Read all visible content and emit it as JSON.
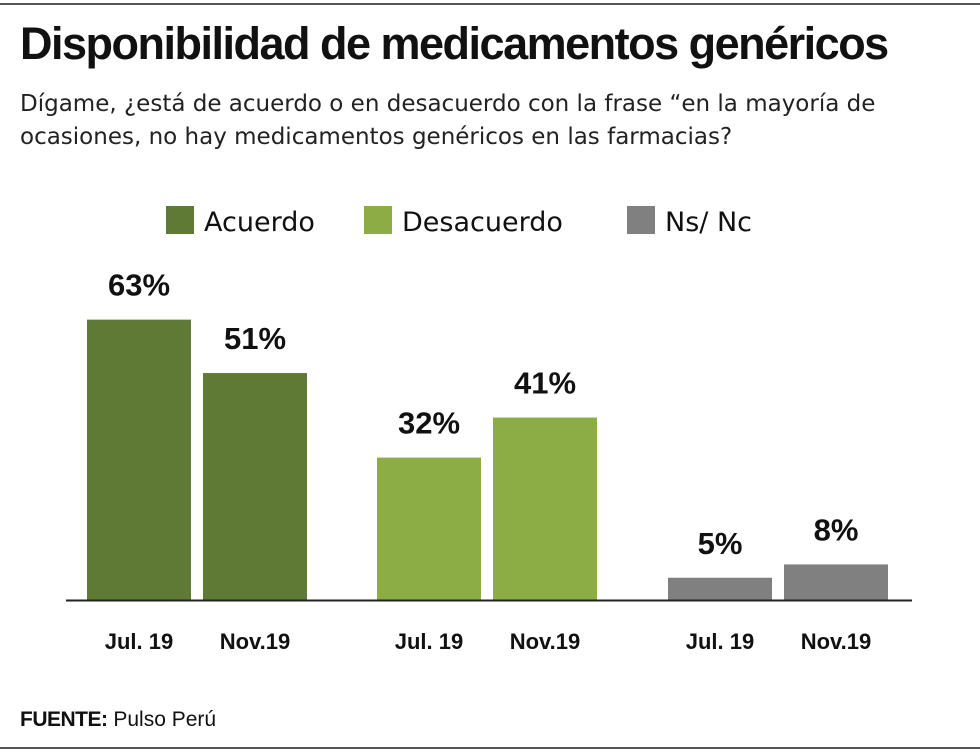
{
  "header": {
    "title": "Disponibilidad de medicamentos genéricos",
    "subtitle": "Dígame, ¿está de acuerdo o en desacuerdo con la frase “en la mayoría de ocasiones, no hay medicamentos genéricos en las farmacias?"
  },
  "source": {
    "label": "FUENTE:",
    "text": "Pulso Perú"
  },
  "chart_data": {
    "type": "bar",
    "title": "Disponibilidad de medicamentos genéricos",
    "legend_position": "top",
    "grid": false,
    "ylim": [
      0,
      70
    ],
    "groups": [
      {
        "name": "Acuerdo",
        "color": "#5e7a34",
        "categories": [
          "Jul. 19",
          "Nov.19"
        ],
        "values": [
          63,
          51
        ],
        "labels": [
          "63%",
          "51%"
        ]
      },
      {
        "name": "Desacuerdo",
        "color": "#8cad46",
        "categories": [
          "Jul. 19",
          "Nov.19"
        ],
        "values": [
          32,
          41
        ],
        "labels": [
          "32%",
          "41%"
        ]
      },
      {
        "name": "Ns/ Nc",
        "color": "#808080",
        "categories": [
          "Jul. 19",
          "Nov.19"
        ],
        "values": [
          5,
          8
        ],
        "labels": [
          "5%",
          "8%"
        ]
      }
    ]
  }
}
